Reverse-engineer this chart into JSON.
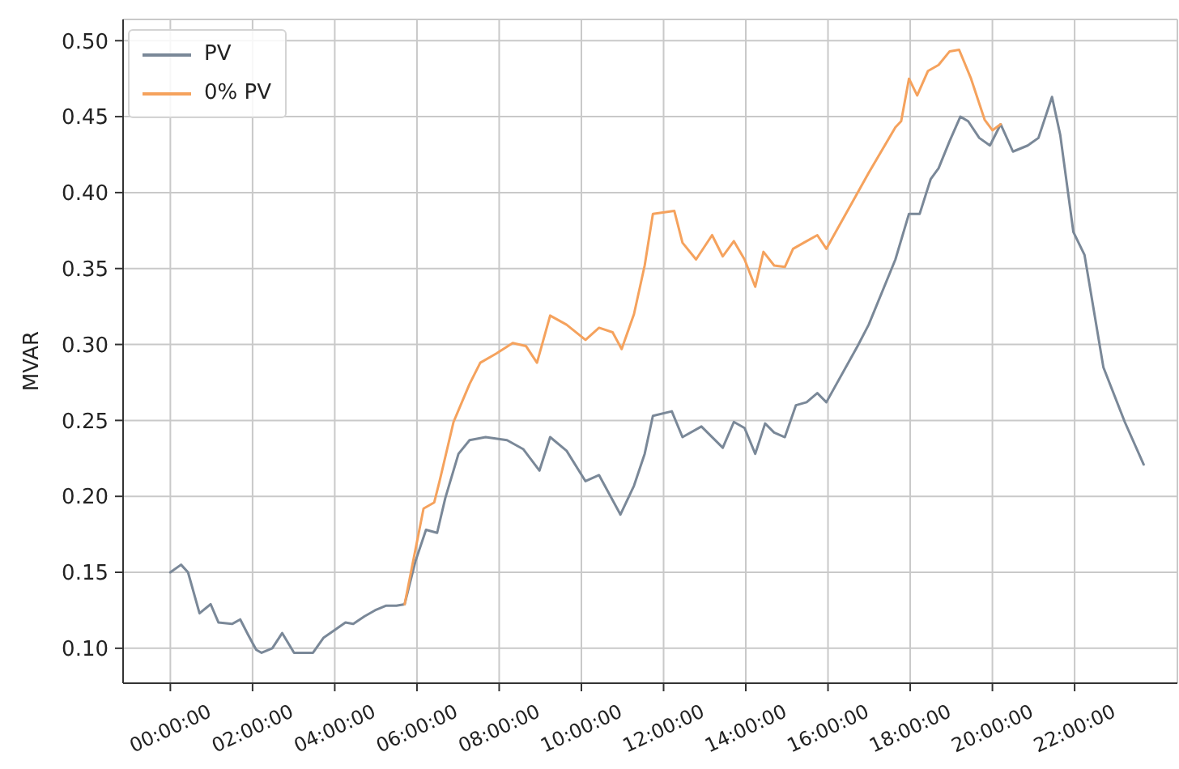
{
  "chart_data": {
    "type": "line",
    "ylabel": "MVAR",
    "series": [
      {
        "name": "PV",
        "color": "#7a8898",
        "x": [
          0,
          0.26,
          0.43,
          0.71,
          0.98,
          1.17,
          1.5,
          1.7,
          1.89,
          2.09,
          2.22,
          2.48,
          2.72,
          3.01,
          3.47,
          3.73,
          4.0,
          4.26,
          4.45,
          4.72,
          4.98,
          5.24,
          5.5,
          5.7,
          5.96,
          6.22,
          6.49,
          6.69,
          7.01,
          7.28,
          7.67,
          8.19,
          8.59,
          8.98,
          9.24,
          9.64,
          10.1,
          10.43,
          10.95,
          11.28,
          11.54,
          11.74,
          12.2,
          12.46,
          12.92,
          13.44,
          13.71,
          13.97,
          14.23,
          14.47,
          14.69,
          14.95,
          15.22,
          15.48,
          15.74,
          15.96,
          16.72,
          16.99,
          17.64,
          17.97,
          18.23,
          18.5,
          18.69,
          18.96,
          19.22,
          19.41,
          19.68,
          19.94,
          20.2,
          20.5,
          20.86,
          21.12,
          21.45,
          21.65,
          21.97,
          22.24,
          22.7,
          23.22,
          23.68
        ],
        "values": [
          0.15,
          0.155,
          0.15,
          0.123,
          0.129,
          0.117,
          0.116,
          0.119,
          0.109,
          0.099,
          0.097,
          0.1,
          0.11,
          0.097,
          0.097,
          0.107,
          0.112,
          0.117,
          0.116,
          0.121,
          0.125,
          0.128,
          0.128,
          0.129,
          0.157,
          0.178,
          0.176,
          0.199,
          0.228,
          0.237,
          0.239,
          0.237,
          0.231,
          0.217,
          0.239,
          0.23,
          0.21,
          0.214,
          0.188,
          0.207,
          0.228,
          0.253,
          0.256,
          0.239,
          0.246,
          0.232,
          0.249,
          0.245,
          0.228,
          0.248,
          0.242,
          0.239,
          0.26,
          0.262,
          0.268,
          0.262,
          0.299,
          0.313,
          0.356,
          0.386,
          0.386,
          0.409,
          0.416,
          0.434,
          0.45,
          0.447,
          0.436,
          0.431,
          0.445,
          0.427,
          0.431,
          0.436,
          0.463,
          0.438,
          0.374,
          0.359,
          0.285,
          0.249,
          0.221
        ]
      },
      {
        "name": "0% PV",
        "color": "#f5a25d",
        "x": [
          5.7,
          6.16,
          6.42,
          6.55,
          6.89,
          7.28,
          7.54,
          7.93,
          8.33,
          8.65,
          8.92,
          9.24,
          9.64,
          10.1,
          10.43,
          10.76,
          10.98,
          11.28,
          11.54,
          11.74,
          12.26,
          12.46,
          12.79,
          13.18,
          13.44,
          13.71,
          13.97,
          14.23,
          14.43,
          14.69,
          14.95,
          15.15,
          15.41,
          15.74,
          15.96,
          16.99,
          17.64,
          17.78,
          17.97,
          18.17,
          18.43,
          18.69,
          18.96,
          19.19,
          19.48,
          19.81,
          20.0,
          20.2
        ],
        "values": [
          0.129,
          0.192,
          0.196,
          0.21,
          0.249,
          0.274,
          0.288,
          0.294,
          0.301,
          0.299,
          0.288,
          0.319,
          0.313,
          0.303,
          0.311,
          0.308,
          0.297,
          0.32,
          0.352,
          0.386,
          0.388,
          0.367,
          0.356,
          0.372,
          0.358,
          0.368,
          0.356,
          0.338,
          0.361,
          0.352,
          0.351,
          0.363,
          0.367,
          0.372,
          0.363,
          0.413,
          0.443,
          0.447,
          0.475,
          0.464,
          0.48,
          0.484,
          0.493,
          0.494,
          0.475,
          0.448,
          0.441,
          0.445
        ]
      }
    ],
    "xlim": [
      -1.15,
      24.5
    ],
    "xticks": [
      {
        "value": 0,
        "label": "00:00:00"
      },
      {
        "value": 2,
        "label": "02:00:00"
      },
      {
        "value": 4,
        "label": "04:00:00"
      },
      {
        "value": 6,
        "label": "06:00:00"
      },
      {
        "value": 8,
        "label": "08:00:00"
      },
      {
        "value": 10,
        "label": "10:00:00"
      },
      {
        "value": 12,
        "label": "12:00:00"
      },
      {
        "value": 14,
        "label": "14:00:00"
      },
      {
        "value": 16,
        "label": "16:00:00"
      },
      {
        "value": 18,
        "label": "18:00:00"
      },
      {
        "value": 20,
        "label": "20:00:00"
      },
      {
        "value": 22,
        "label": "22:00:00"
      }
    ],
    "ylim": [
      0.077,
      0.514
    ],
    "yticks": [
      {
        "value": 0.1,
        "label": "0.10"
      },
      {
        "value": 0.15,
        "label": "0.15"
      },
      {
        "value": 0.2,
        "label": "0.20"
      },
      {
        "value": 0.25,
        "label": "0.25"
      },
      {
        "value": 0.3,
        "label": "0.30"
      },
      {
        "value": 0.35,
        "label": "0.35"
      },
      {
        "value": 0.4,
        "label": "0.40"
      },
      {
        "value": 0.45,
        "label": "0.45"
      },
      {
        "value": 0.5,
        "label": "0.50"
      }
    ],
    "grid": true,
    "legend": "top left"
  }
}
